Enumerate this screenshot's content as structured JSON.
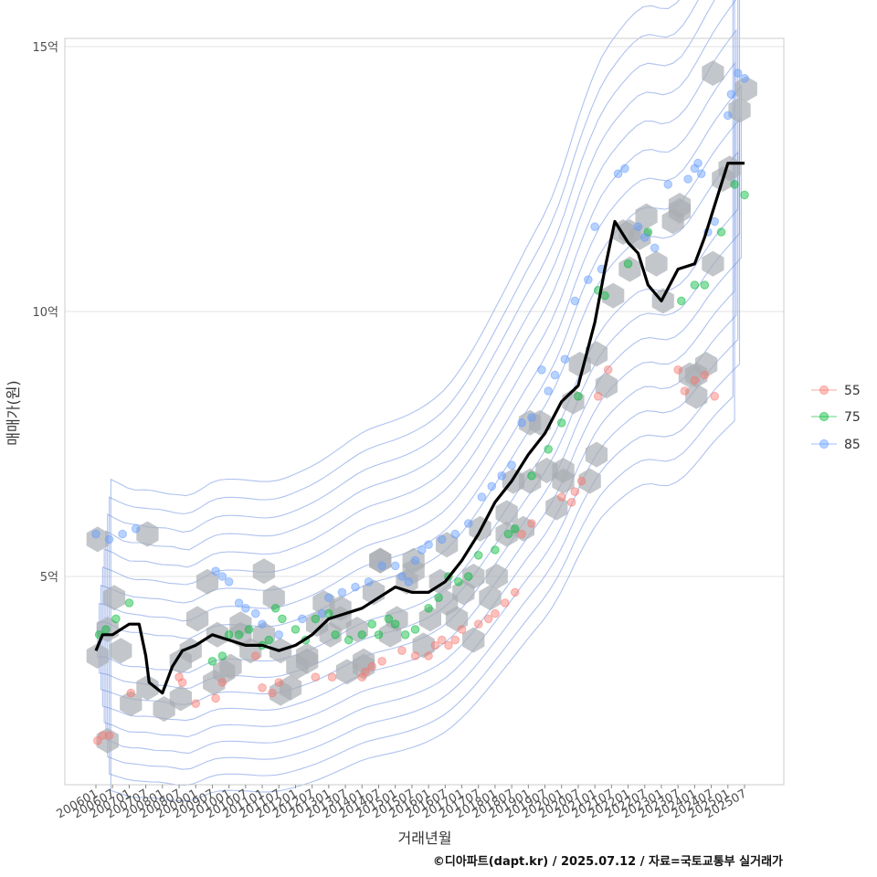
{
  "chart_data": {
    "type": "scatter",
    "xlabel": "거래년월",
    "ylabel": "매매가(원)",
    "caption": "©디아파트(dapt.kr) / 2025.07.12 / 자료=국토교통부 실거래가",
    "ylim": [
      1.2,
      15.2
    ],
    "y_ticks": [
      {
        "value": 5,
        "label": "5억"
      },
      {
        "value": 10,
        "label": "10억"
      },
      {
        "value": 15,
        "label": "15억"
      }
    ],
    "x_ticks": [
      "200601",
      "200607",
      "200701",
      "200707",
      "200801",
      "200807",
      "200901",
      "200907",
      "201001",
      "201007",
      "201101",
      "201107",
      "201201",
      "201207",
      "201301",
      "201307",
      "201401",
      "201407",
      "201501",
      "201507",
      "201601",
      "201607",
      "201701",
      "201707",
      "201801",
      "201807",
      "201901",
      "201907",
      "202001",
      "202007",
      "202101",
      "202107",
      "202201",
      "202207",
      "202301",
      "202307",
      "202401",
      "202407",
      "202501",
      "202507"
    ],
    "grid": true,
    "legend": {
      "position": "right",
      "entries": [
        {
          "name": "55",
          "color": "#F8766D"
        },
        {
          "name": "75",
          "color": "#00BA38"
        },
        {
          "name": "85",
          "color": "#619CFF"
        }
      ]
    },
    "colors": {
      "trend": "#000000",
      "hexbin": "#a9aeb3",
      "contour": "#6d8fe0",
      "grid": "#e3e3e3",
      "frame": "#cccccc"
    },
    "trend_line": {
      "name": "moving average",
      "x": [
        2006.0,
        2006.2,
        2006.5,
        2007.0,
        2007.3,
        2007.5,
        2007.6,
        2008.0,
        2008.3,
        2008.6,
        2009.0,
        2009.5,
        2010.0,
        2010.5,
        2011.0,
        2011.5,
        2012.0,
        2012.5,
        2013.0,
        2013.5,
        2014.0,
        2014.5,
        2015.0,
        2015.5,
        2016.0,
        2016.5,
        2017.0,
        2017.5,
        2018.0,
        2018.5,
        2019.0,
        2019.5,
        2020.0,
        2020.5,
        2021.0,
        2021.3,
        2021.6,
        2022.0,
        2022.3,
        2022.6,
        2023.0,
        2023.5,
        2024.0,
        2024.3,
        2024.6,
        2025.0,
        2025.3,
        2025.5
      ],
      "y": [
        3.6,
        3.9,
        3.9,
        4.1,
        4.1,
        3.5,
        3.0,
        2.8,
        3.3,
        3.6,
        3.7,
        3.9,
        3.8,
        3.7,
        3.7,
        3.6,
        3.7,
        3.9,
        4.2,
        4.3,
        4.4,
        4.6,
        4.8,
        4.7,
        4.7,
        4.9,
        5.3,
        5.8,
        6.4,
        6.8,
        7.3,
        7.7,
        8.3,
        8.6,
        9.8,
        10.8,
        11.7,
        11.3,
        11.1,
        10.5,
        10.2,
        10.8,
        10.9,
        11.4,
        12.0,
        12.8,
        12.8,
        12.8
      ]
    },
    "series": [
      {
        "name": "55",
        "x": [
          2006.05,
          2006.2,
          2006.4,
          2007.05,
          2008.5,
          2008.6,
          2009.0,
          2009.6,
          2009.8,
          2010.8,
          2011.0,
          2011.3,
          2011.5,
          2012.6,
          2013.1,
          2014.0,
          2014.1,
          2014.3,
          2014.6,
          2015.2,
          2015.6,
          2016.0,
          2016.2,
          2016.4,
          2016.6,
          2016.8,
          2017.0,
          2017.5,
          2017.8,
          2018.0,
          2018.3,
          2018.6,
          2018.8,
          2019.1,
          2020.0,
          2020.3,
          2020.4,
          2020.6,
          2021.1,
          2021.4,
          2023.5,
          2023.7,
          2024.0,
          2024.3,
          2024.6
        ],
        "y": [
          1.9,
          2.0,
          2.0,
          2.8,
          3.1,
          3.0,
          2.6,
          2.7,
          3.0,
          3.5,
          2.9,
          2.8,
          3.0,
          3.1,
          3.1,
          3.1,
          3.2,
          3.3,
          3.4,
          3.6,
          3.5,
          3.5,
          3.7,
          3.8,
          3.7,
          3.8,
          4.0,
          4.1,
          4.2,
          4.3,
          4.5,
          4.7,
          5.8,
          6.0,
          6.5,
          6.4,
          6.6,
          6.8,
          8.4,
          8.9,
          8.9,
          8.5,
          8.7,
          8.8,
          8.4
        ]
      },
      {
        "name": "75",
        "x": [
          2006.1,
          2006.3,
          2006.6,
          2007.0,
          2009.5,
          2009.8,
          2010.0,
          2010.3,
          2010.6,
          2011.0,
          2011.2,
          2011.4,
          2011.6,
          2012.0,
          2012.3,
          2012.6,
          2013.0,
          2013.2,
          2013.6,
          2014.0,
          2014.3,
          2014.5,
          2014.8,
          2015.0,
          2015.3,
          2015.6,
          2016.0,
          2016.3,
          2016.6,
          2016.9,
          2017.2,
          2017.5,
          2018.0,
          2018.4,
          2018.6,
          2019.1,
          2019.6,
          2020.0,
          2020.5,
          2021.1,
          2021.3,
          2022.0,
          2022.6,
          2023.6,
          2024.0,
          2024.3,
          2024.8,
          2025.2,
          2025.5
        ],
        "y": [
          3.9,
          4.0,
          4.2,
          4.5,
          3.4,
          3.5,
          3.9,
          3.9,
          4.0,
          3.7,
          3.8,
          4.4,
          4.2,
          4.0,
          3.8,
          4.2,
          4.3,
          3.9,
          3.8,
          3.9,
          4.1,
          3.9,
          4.2,
          4.1,
          3.9,
          4.0,
          4.4,
          4.6,
          5.0,
          4.9,
          5.0,
          5.4,
          5.5,
          5.8,
          5.9,
          6.9,
          7.4,
          7.9,
          8.4,
          10.4,
          10.3,
          10.9,
          11.5,
          10.2,
          10.5,
          10.5,
          11.5,
          12.4,
          12.2
        ]
      },
      {
        "name": "85",
        "x": [
          2006.0,
          2006.4,
          2006.8,
          2007.2,
          2009.6,
          2009.8,
          2010.0,
          2010.3,
          2010.5,
          2010.8,
          2011.0,
          2011.5,
          2012.2,
          2012.8,
          2013.0,
          2013.4,
          2013.8,
          2014.2,
          2014.6,
          2015.0,
          2015.2,
          2015.4,
          2015.6,
          2015.8,
          2016.0,
          2016.4,
          2016.8,
          2017.2,
          2017.6,
          2017.9,
          2018.2,
          2018.5,
          2018.8,
          2019.1,
          2019.4,
          2019.6,
          2019.8,
          2020.1,
          2020.4,
          2020.8,
          2021.0,
          2021.2,
          2021.7,
          2021.9,
          2022.3,
          2022.5,
          2022.8,
          2023.2,
          2023.8,
          2024.0,
          2024.1,
          2024.2,
          2024.4,
          2024.6,
          2025.0,
          2025.1,
          2025.3,
          2025.5
        ],
        "y": [
          5.8,
          5.7,
          5.8,
          5.9,
          5.1,
          5.0,
          4.9,
          4.5,
          4.4,
          4.3,
          4.1,
          3.9,
          4.2,
          4.3,
          4.6,
          4.7,
          4.8,
          4.9,
          5.2,
          5.2,
          5.0,
          4.9,
          5.3,
          5.5,
          5.6,
          5.7,
          5.8,
          6.0,
          6.5,
          6.7,
          6.9,
          7.1,
          7.9,
          8.0,
          8.9,
          8.5,
          8.8,
          9.1,
          10.2,
          10.6,
          11.6,
          10.8,
          12.6,
          12.7,
          11.6,
          11.4,
          11.2,
          12.4,
          12.5,
          12.7,
          12.8,
          12.6,
          11.5,
          11.7,
          13.7,
          14.1,
          14.5,
          14.4
        ]
      }
    ],
    "hexbins": {
      "x": [
        2006.05,
        2006.35,
        2006.55,
        2006.75,
        2007.05,
        2007.55,
        2008.05,
        2008.55,
        2008.85,
        2009.05,
        2009.35,
        2009.65,
        2009.85,
        2010.05,
        2010.35,
        2010.65,
        2011.05,
        2011.35,
        2011.55,
        2011.85,
        2012.05,
        2012.35,
        2012.65,
        2012.85,
        2013.05,
        2013.35,
        2013.55,
        2013.85,
        2014.05,
        2014.35,
        2014.55,
        2014.85,
        2015.05,
        2015.35,
        2015.55,
        2015.85,
        2016.05,
        2016.35,
        2016.55,
        2016.85,
        2017.05,
        2017.35,
        2017.55,
        2017.85,
        2018.05,
        2018.35,
        2018.55,
        2018.85,
        2019.05,
        2019.35,
        2019.55,
        2019.85,
        2020.05,
        2020.35,
        2020.55,
        2020.85,
        2021.05,
        2021.35,
        2021.55,
        2021.85,
        2022.05,
        2022.35,
        2022.55,
        2022.85,
        2023.05,
        2023.35,
        2023.55,
        2023.85,
        2024.05,
        2024.35,
        2024.55,
        2024.85,
        2025.05,
        2025.35,
        2025.55,
        2006.05,
        2006.35,
        2007.55,
        2008.55,
        2009.55,
        2010.35,
        2011.05,
        2011.55,
        2012.35,
        2013.35,
        2014.05,
        2014.55,
        2015.55,
        2016.55,
        2017.35,
        2018.35,
        2019.05,
        2020.05,
        2021.05,
        2022.05,
        2023.55,
        2024.05,
        2024.55
      ],
      "y": [
        3.5,
        4.0,
        4.6,
        3.6,
        2.6,
        2.9,
        2.5,
        3.4,
        3.6,
        4.2,
        4.9,
        3.9,
        3.2,
        3.3,
        4.1,
        3.6,
        3.9,
        4.6,
        3.6,
        2.9,
        3.3,
        3.5,
        4.1,
        4.5,
        3.9,
        4.4,
        3.2,
        4.0,
        3.4,
        4.7,
        5.3,
        3.9,
        4.2,
        4.9,
        5.3,
        3.7,
        4.2,
        4.9,
        5.6,
        4.2,
        4.7,
        5.0,
        5.9,
        4.6,
        5.0,
        6.2,
        6.8,
        5.9,
        6.8,
        7.9,
        7.0,
        6.3,
        7.0,
        8.3,
        9.0,
        6.8,
        7.3,
        8.6,
        10.3,
        11.5,
        10.8,
        11.4,
        11.8,
        10.9,
        10.2,
        11.7,
        12.0,
        8.8,
        8.4,
        9.0,
        10.9,
        12.5,
        12.7,
        13.8,
        14.2,
        5.7,
        1.9,
        5.8,
        2.7,
        3.0,
        3.9,
        5.1,
        2.8,
        3.4,
        4.2,
        3.3,
        5.3,
        5.1,
        4.5,
        3.8,
        5.8,
        7.9,
        6.8,
        9.2,
        11.5,
        11.9,
        8.8,
        14.5
      ]
    }
  }
}
